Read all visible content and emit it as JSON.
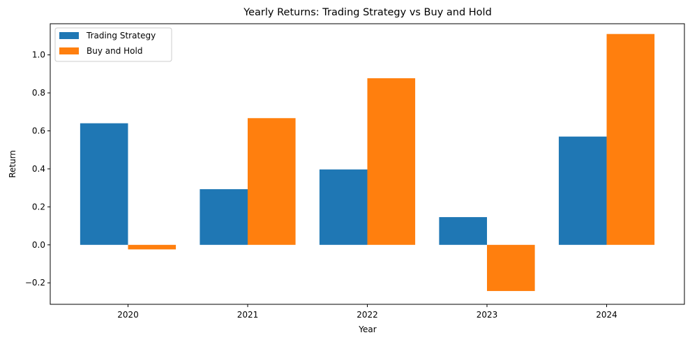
{
  "chart_data": {
    "type": "bar",
    "title": "Yearly Returns: Trading Strategy vs Buy and Hold",
    "xlabel": "Year",
    "ylabel": "Return",
    "categories": [
      "2020",
      "2021",
      "2022",
      "2023",
      "2024"
    ],
    "series": [
      {
        "name": "Trading Strategy",
        "color": "#1f77b4",
        "values": [
          0.64,
          0.293,
          0.397,
          0.146,
          0.57
        ]
      },
      {
        "name": "Buy and Hold",
        "color": "#ff7f0e",
        "values": [
          -0.024,
          0.667,
          0.877,
          -0.243,
          1.11
        ]
      }
    ],
    "ylim": [
      -0.313,
      1.164
    ],
    "yticks": [
      -0.2,
      0.0,
      0.2,
      0.4,
      0.6,
      0.8,
      1.0
    ],
    "ytick_labels": [
      "−0.2",
      "0.0",
      "0.2",
      "0.4",
      "0.6",
      "0.8",
      "1.0"
    ],
    "legend_position": "top-left",
    "grid": false
  }
}
